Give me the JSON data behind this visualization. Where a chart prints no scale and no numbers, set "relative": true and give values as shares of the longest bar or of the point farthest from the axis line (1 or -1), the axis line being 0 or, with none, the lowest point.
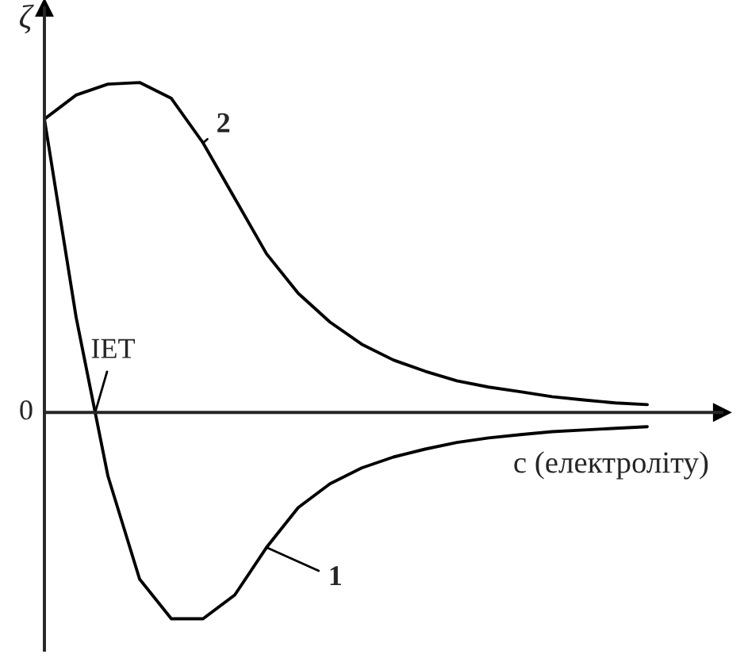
{
  "chart_data": {
    "type": "line",
    "relative": true,
    "ylabel": "ζ",
    "xlabel": "c (електроліту)",
    "categories": [
      null,
      null,
      null,
      null,
      null,
      null,
      null,
      null,
      null,
      null,
      null,
      null,
      null,
      null,
      null,
      null,
      null,
      null,
      null,
      null,
      null
    ],
    "series": [
      {
        "name": "1",
        "color": "#000000",
        "values": [
          0.889,
          0.288,
          -0.192,
          -0.505,
          -0.625,
          -0.625,
          -0.553,
          -0.409,
          -0.288,
          -0.216,
          -0.168,
          -0.135,
          -0.111,
          -0.091,
          -0.077,
          -0.067,
          -0.058,
          -0.053,
          -0.048,
          -0.043,
          null
        ]
      },
      {
        "name": "2",
        "color": "#000000",
        "values": [
          0.889,
          0.962,
          0.995,
          1.0,
          0.952,
          0.817,
          0.649,
          0.481,
          0.361,
          0.274,
          0.207,
          0.159,
          0.125,
          0.096,
          0.077,
          0.063,
          0.048,
          0.038,
          0.029,
          0.024,
          null
        ]
      }
    ],
    "annotations": [
      "0",
      "IET"
    ],
    "marker": "none",
    "line_style": "solid"
  }
}
